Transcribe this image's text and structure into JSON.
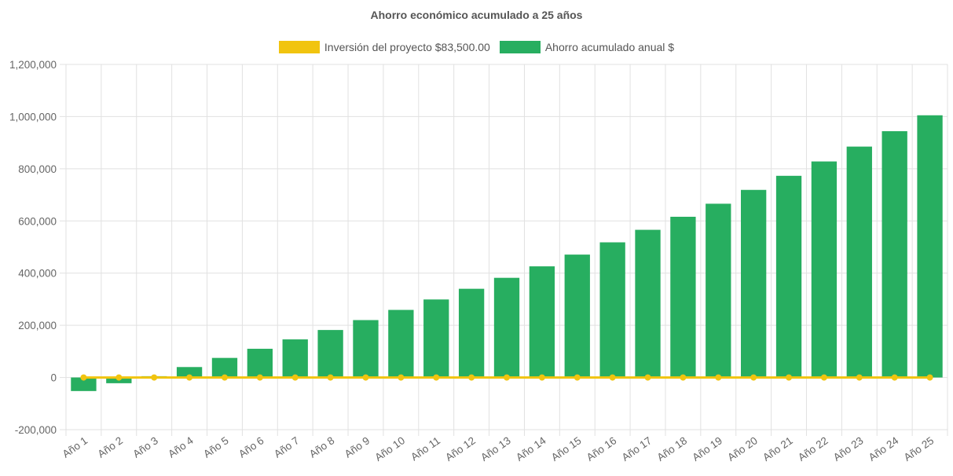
{
  "chart_data": {
    "type": "bar",
    "title": "Ahorro económico acumulado a 25 años",
    "categories": [
      "Año 1",
      "Año 2",
      "Año 3",
      "Año 4",
      "Año 5",
      "Año 6",
      "Año 7",
      "Año 8",
      "Año 9",
      "Año 10",
      "Año 11",
      "Año 12",
      "Año 13",
      "Año 14",
      "Año 15",
      "Año 16",
      "Año 17",
      "Año 18",
      "Año 19",
      "Año 20",
      "Año 21",
      "Año 22",
      "Año 23",
      "Año 24",
      "Año 25"
    ],
    "series": [
      {
        "name": "Inversión del proyecto $83,500.00",
        "type": "line",
        "color": "#f1c40f",
        "values": [
          0,
          0,
          0,
          0,
          0,
          0,
          0,
          0,
          0,
          0,
          0,
          0,
          0,
          0,
          0,
          0,
          0,
          0,
          0,
          0,
          0,
          0,
          0,
          0,
          0
        ]
      },
      {
        "name": "Ahorro acumulado anual $",
        "type": "bar",
        "color": "#27ae60",
        "values": [
          -52000,
          -22000,
          5000,
          40000,
          75000,
          110000,
          146000,
          182000,
          220000,
          259000,
          299000,
          340000,
          382000,
          426000,
          471000,
          518000,
          566000,
          616000,
          666000,
          719000,
          773000,
          828000,
          885000,
          944000,
          1005000
        ]
      }
    ],
    "ylim": [
      -200000,
      1200000
    ],
    "yticks": [
      -200000,
      0,
      200000,
      400000,
      600000,
      800000,
      1000000,
      1200000
    ],
    "ytick_labels": [
      "-200,000",
      "0",
      "200,000",
      "400,000",
      "600,000",
      "800,000",
      "1,000,000",
      "1,200,000"
    ],
    "grid": true,
    "legend_position": "top-center"
  }
}
